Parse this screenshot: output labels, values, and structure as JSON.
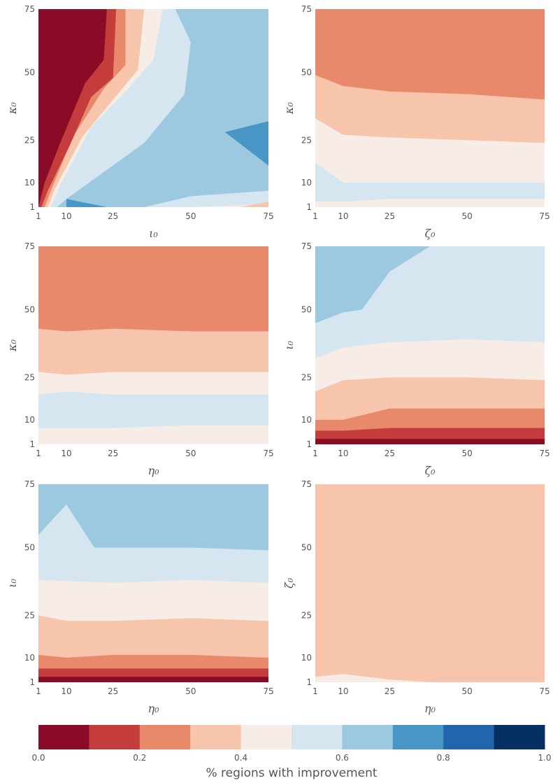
{
  "colorbar": {
    "label": "% regions with improvement",
    "levels": [
      0.0,
      0.1,
      0.2,
      0.3,
      0.4,
      0.5,
      0.6,
      0.7,
      0.8,
      0.9,
      1.0
    ],
    "colors": [
      "#8a0b25",
      "#c43c3c",
      "#e8896b",
      "#f7c5ab",
      "#f8ece6",
      "#d6e6f0",
      "#9cc9e0",
      "#4896c5",
      "#2166ac",
      "#053061"
    ],
    "tick_values": [
      0.0,
      0.2,
      0.4,
      0.6,
      0.8,
      1.0
    ],
    "tick_labels": [
      "0.0",
      "0.2",
      "0.4",
      "0.6",
      "0.8",
      "1.0"
    ]
  },
  "chart_data": [
    {
      "type": "contour",
      "xlabel": "ι₀",
      "ylabel": "κ₀",
      "xticks": [
        "1",
        "10",
        "25",
        "50",
        "75"
      ],
      "yticks": [
        "1",
        "10",
        "25",
        "50",
        "75"
      ],
      "xlim": [
        1,
        75
      ],
      "ylim": [
        1,
        75
      ],
      "background_band": 6,
      "regions": [
        {
          "band": 7,
          "points": [
            [
              61,
              28
            ],
            [
              75,
              32
            ],
            [
              75,
              16
            ]
          ]
        },
        {
          "band": 7,
          "points": [
            [
              10,
              4
            ],
            [
              10,
              1
            ],
            [
              23,
              1
            ]
          ]
        },
        {
          "band": 5,
          "points": [
            [
              45,
              75
            ],
            [
              50,
              62
            ],
            [
              48,
              42
            ],
            [
              35,
              24
            ],
            [
              10,
              4
            ],
            [
              7,
              1
            ],
            [
              1,
              1
            ],
            [
              1,
              75
            ]
          ]
        },
        {
          "band": 5,
          "points": [
            [
              10,
              1
            ],
            [
              35,
              1
            ],
            [
              50,
              5
            ],
            [
              75,
              7
            ],
            [
              75,
              1
            ]
          ]
        },
        {
          "band": 4,
          "points": [
            [
              41,
              75
            ],
            [
              38,
              55
            ],
            [
              29,
              43
            ],
            [
              18,
              30
            ],
            [
              8,
              9
            ],
            [
              5,
              1
            ],
            [
              1,
              1
            ],
            [
              1,
              75
            ]
          ]
        },
        {
          "band": 4,
          "points": [
            [
              50,
              1
            ],
            [
              75,
              2
            ],
            [
              75,
              1
            ]
          ]
        },
        {
          "band": 3,
          "points": [
            [
              35,
              75
            ],
            [
              33,
              51
            ],
            [
              25,
              40
            ],
            [
              15,
              26
            ],
            [
              6,
              7
            ],
            [
              4,
              1
            ],
            [
              1,
              1
            ],
            [
              1,
              75
            ]
          ]
        },
        {
          "band": 3,
          "points": [
            [
              66,
              1
            ],
            [
              75,
              3
            ],
            [
              75,
              1
            ]
          ]
        },
        {
          "band": 2,
          "points": [
            [
              29,
              75
            ],
            [
              29,
              53
            ],
            [
              22,
              44
            ],
            [
              12,
              26
            ],
            [
              5,
              7
            ],
            [
              3,
              1
            ],
            [
              1,
              1
            ],
            [
              1,
              75
            ]
          ]
        },
        {
          "band": 1,
          "points": [
            [
              26,
              75
            ],
            [
              25,
              48
            ],
            [
              18,
              41
            ],
            [
              11,
              23
            ],
            [
              4,
              7
            ],
            [
              2,
              1
            ],
            [
              1,
              1
            ],
            [
              1,
              75
            ]
          ]
        },
        {
          "band": 0,
          "points": [
            [
              23,
              75
            ],
            [
              22,
              55
            ],
            [
              16,
              46
            ],
            [
              8,
              24
            ],
            [
              3,
              10
            ],
            [
              1,
              1
            ],
            [
              1,
              75
            ]
          ]
        }
      ]
    },
    {
      "type": "contour",
      "xlabel": "ζ₀",
      "ylabel": "κ₀",
      "xticks": [
        "1",
        "10",
        "25",
        "50",
        "75"
      ],
      "yticks": [
        "1",
        "10",
        "25",
        "50",
        "75"
      ],
      "xlim": [
        1,
        75
      ],
      "ylim": [
        1,
        75
      ],
      "background_band": 4,
      "regions": [
        {
          "band": 5,
          "points": [
            [
              1,
              17
            ],
            [
              10,
              10
            ],
            [
              25,
              10
            ],
            [
              50,
              10
            ],
            [
              75,
              10
            ],
            [
              75,
              4
            ],
            [
              50,
              4
            ],
            [
              25,
              4
            ],
            [
              10,
              3
            ],
            [
              1,
              3
            ]
          ]
        },
        {
          "band": 3,
          "points": [
            [
              1,
              33
            ],
            [
              10,
              27
            ],
            [
              25,
              26
            ],
            [
              50,
              25
            ],
            [
              75,
              24
            ],
            [
              75,
              75
            ],
            [
              1,
              75
            ]
          ]
        },
        {
          "band": 2,
          "points": [
            [
              1,
              49
            ],
            [
              10,
              45
            ],
            [
              25,
              43
            ],
            [
              50,
              42
            ],
            [
              75,
              40
            ],
            [
              75,
              75
            ],
            [
              1,
              75
            ]
          ]
        }
      ]
    },
    {
      "type": "contour",
      "xlabel": "η₀",
      "ylabel": "κ₀",
      "xticks": [
        "1",
        "10",
        "25",
        "50",
        "75"
      ],
      "yticks": [
        "1",
        "10",
        "25",
        "50",
        "75"
      ],
      "xlim": [
        1,
        75
      ],
      "ylim": [
        1,
        75
      ],
      "background_band": 4,
      "regions": [
        {
          "band": 5,
          "points": [
            [
              1,
              19
            ],
            [
              10,
              20
            ],
            [
              25,
              19
            ],
            [
              50,
              19
            ],
            [
              75,
              19
            ],
            [
              75,
              8
            ],
            [
              50,
              8
            ],
            [
              25,
              7
            ],
            [
              10,
              7
            ],
            [
              1,
              7
            ]
          ]
        },
        {
          "band": 3,
          "points": [
            [
              1,
              27
            ],
            [
              10,
              26
            ],
            [
              25,
              27
            ],
            [
              50,
              27
            ],
            [
              75,
              27
            ],
            [
              75,
              75
            ],
            [
              1,
              75
            ]
          ]
        },
        {
          "band": 2,
          "points": [
            [
              1,
              43
            ],
            [
              10,
              42
            ],
            [
              25,
              43
            ],
            [
              50,
              42
            ],
            [
              75,
              42
            ],
            [
              75,
              75
            ],
            [
              1,
              75
            ]
          ]
        }
      ]
    },
    {
      "type": "contour",
      "xlabel": "ζ₀",
      "ylabel": "ι₀",
      "xticks": [
        "1",
        "10",
        "25",
        "50",
        "75"
      ],
      "yticks": [
        "1",
        "10",
        "25",
        "50",
        "75"
      ],
      "xlim": [
        1,
        75
      ],
      "ylim": [
        1,
        75
      ],
      "background_band": 5,
      "regions": [
        {
          "band": 6,
          "points": [
            [
              1,
              45
            ],
            [
              10,
              49
            ],
            [
              16,
              50
            ],
            [
              25,
              65
            ],
            [
              38,
              75
            ],
            [
              1,
              75
            ]
          ]
        },
        {
          "band": 4,
          "points": [
            [
              1,
              32
            ],
            [
              10,
              36
            ],
            [
              25,
              38
            ],
            [
              50,
              39
            ],
            [
              75,
              38
            ],
            [
              75,
              1
            ],
            [
              1,
              1
            ]
          ]
        },
        {
          "band": 3,
          "points": [
            [
              1,
              20
            ],
            [
              10,
              24
            ],
            [
              25,
              25
            ],
            [
              50,
              25
            ],
            [
              75,
              24
            ],
            [
              75,
              1
            ],
            [
              1,
              1
            ]
          ]
        },
        {
          "band": 2,
          "points": [
            [
              1,
              10
            ],
            [
              10,
              10
            ],
            [
              25,
              14
            ],
            [
              50,
              14
            ],
            [
              75,
              14
            ],
            [
              75,
              1
            ],
            [
              1,
              1
            ]
          ]
        },
        {
          "band": 1,
          "points": [
            [
              1,
              6
            ],
            [
              10,
              6
            ],
            [
              25,
              7
            ],
            [
              50,
              7
            ],
            [
              75,
              7
            ],
            [
              75,
              1
            ],
            [
              1,
              1
            ]
          ]
        },
        {
          "band": 0,
          "points": [
            [
              1,
              3
            ],
            [
              25,
              3
            ],
            [
              75,
              3
            ],
            [
              75,
              1
            ],
            [
              1,
              1
            ]
          ]
        }
      ]
    },
    {
      "type": "contour",
      "xlabel": "η₀",
      "ylabel": "ι₀",
      "xticks": [
        "1",
        "10",
        "25",
        "50",
        "75"
      ],
      "yticks": [
        "1",
        "10",
        "25",
        "50",
        "75"
      ],
      "xlim": [
        1,
        75
      ],
      "ylim": [
        1,
        75
      ],
      "background_band": 6,
      "regions": [
        {
          "band": 5,
          "points": [
            [
              1,
              55
            ],
            [
              10,
              67
            ],
            [
              19,
              50
            ],
            [
              50,
              50
            ],
            [
              75,
              49
            ],
            [
              75,
              1
            ],
            [
              1,
              1
            ]
          ]
        },
        {
          "band": 4,
          "points": [
            [
              1,
              38
            ],
            [
              25,
              37
            ],
            [
              50,
              38
            ],
            [
              75,
              37
            ],
            [
              75,
              1
            ],
            [
              1,
              1
            ]
          ]
        },
        {
          "band": 3,
          "points": [
            [
              1,
              25
            ],
            [
              10,
              23
            ],
            [
              25,
              23
            ],
            [
              50,
              24
            ],
            [
              75,
              23
            ],
            [
              75,
              1
            ],
            [
              1,
              1
            ]
          ]
        },
        {
          "band": 2,
          "points": [
            [
              1,
              11
            ],
            [
              10,
              10
            ],
            [
              25,
              11
            ],
            [
              50,
              11
            ],
            [
              75,
              10
            ],
            [
              75,
              1
            ],
            [
              1,
              1
            ]
          ]
        },
        {
          "band": 1,
          "points": [
            [
              1,
              6
            ],
            [
              25,
              6
            ],
            [
              50,
              6
            ],
            [
              75,
              6
            ],
            [
              75,
              1
            ],
            [
              1,
              1
            ]
          ]
        },
        {
          "band": 0,
          "points": [
            [
              1,
              3
            ],
            [
              75,
              3
            ],
            [
              75,
              1
            ],
            [
              1,
              1
            ]
          ]
        }
      ]
    },
    {
      "type": "contour",
      "xlabel": "η₀",
      "ylabel": "ζ₀",
      "xticks": [
        "1",
        "10",
        "25",
        "50",
        "75"
      ],
      "yticks": [
        "1",
        "10",
        "25",
        "50",
        "75"
      ],
      "xlim": [
        1,
        75
      ],
      "ylim": [
        1,
        75
      ],
      "background_band": 3,
      "regions": [
        {
          "band": 4,
          "points": [
            [
              1,
              3
            ],
            [
              10,
              4
            ],
            [
              25,
              2
            ],
            [
              38,
              1
            ],
            [
              1,
              1
            ]
          ]
        }
      ]
    }
  ]
}
